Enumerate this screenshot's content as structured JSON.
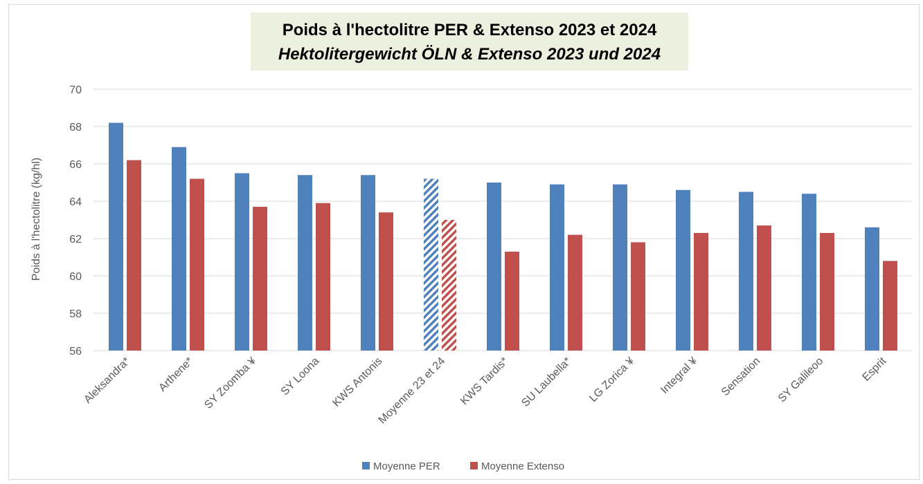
{
  "chart_data": {
    "type": "bar",
    "title": "Poids à l'hectolitre PER & Extenso 2023 et 2024",
    "subtitle": "Hektolitergewicht ÖLN & Extenso 2023 und 2024",
    "ylabel": "Poids à l'hectolitre (kg/hl)",
    "ylim": [
      56,
      70
    ],
    "yticks": [
      56,
      58,
      60,
      62,
      64,
      66,
      68,
      70
    ],
    "grid": true,
    "legend_position": "bottom",
    "categories": [
      "Aleksandra*",
      "Arthene*",
      "SY Zoomba ¥",
      "SY Loona",
      "KWS Antonis",
      "Moyenne 23 et 24",
      "KWS Tardis*",
      "SU Laubella*",
      "LG Zorica ¥",
      "Integral ¥",
      "Sensation",
      "SY Galileoo",
      "Esprit"
    ],
    "highlighted_category": "Moyenne 23 et 24",
    "series": [
      {
        "name": "Moyenne PER",
        "color": "#4f81bd",
        "values": [
          68.2,
          66.9,
          65.5,
          65.4,
          65.4,
          65.2,
          65.0,
          64.9,
          64.9,
          64.6,
          64.5,
          64.4,
          62.6
        ]
      },
      {
        "name": "Moyenne Extenso",
        "color": "#c0504d",
        "values": [
          66.2,
          65.2,
          63.7,
          63.9,
          63.4,
          63.0,
          61.3,
          62.2,
          61.8,
          62.3,
          62.7,
          62.3,
          60.8
        ]
      }
    ]
  }
}
